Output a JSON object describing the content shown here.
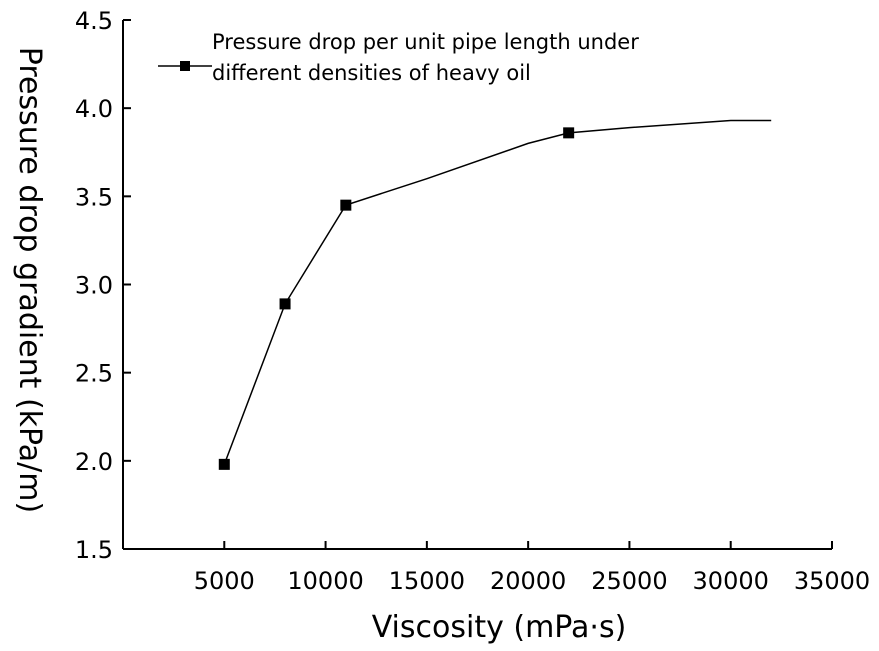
{
  "chart_data": {
    "type": "line",
    "title": "",
    "xlabel": "Viscosity (mPa·s)",
    "ylabel": "Pressure drop gradient (kPa/m)",
    "xlim": [
      0,
      35000
    ],
    "ylim": [
      1.5,
      4.5
    ],
    "xticks": [
      5000,
      10000,
      15000,
      20000,
      25000,
      30000,
      35000
    ],
    "yticks": [
      1.5,
      2.0,
      2.5,
      3.0,
      3.5,
      4.0,
      4.5
    ],
    "xtick_labels": [
      "5000",
      "10000",
      "15000",
      "20000",
      "25000",
      "30000",
      "35000"
    ],
    "ytick_labels": [
      "1.5",
      "2.0",
      "2.5",
      "3.0",
      "3.5",
      "4.0",
      "4.5"
    ],
    "grid": false,
    "legend": {
      "position": "top",
      "entries": [
        {
          "line1": "Pressure drop per unit pipe length under",
          "line2": "different densities of heavy oil"
        }
      ]
    },
    "series": [
      {
        "name": "Pressure drop per unit pipe length under different densities of heavy oil",
        "marker": "square",
        "color": "#000000",
        "x": [
          5000,
          8000,
          11000,
          22000
        ],
        "y": [
          1.98,
          2.89,
          3.45,
          3.86
        ],
        "trend_x": [
          5000,
          8000,
          11000,
          15000,
          20000,
          22000,
          25000,
          30000,
          32000
        ],
        "trend_y": [
          1.98,
          2.89,
          3.45,
          3.6,
          3.8,
          3.86,
          3.89,
          3.93,
          3.93
        ]
      }
    ]
  }
}
